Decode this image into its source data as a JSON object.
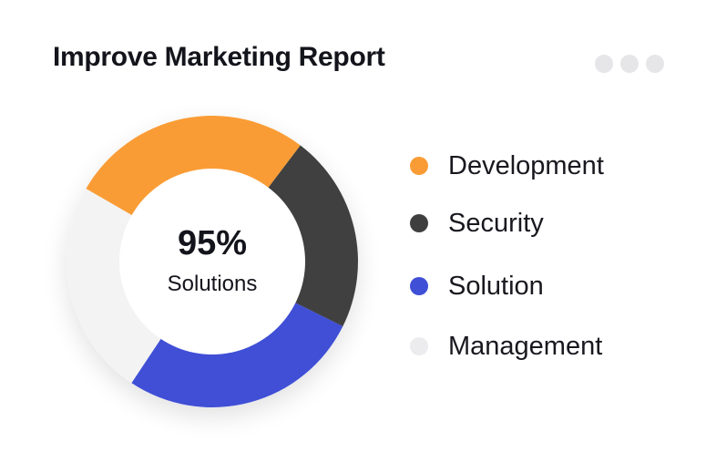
{
  "header": {
    "title": "Improve Marketing Report",
    "menu_icon": "more-horizontal-icon"
  },
  "chart_data": {
    "type": "pie",
    "variant": "donut",
    "title": "Improve Marketing Report",
    "center_value": "95%",
    "center_label": "Solutions",
    "legend_position": "right",
    "categories": [
      "Development",
      "Security",
      "Solution",
      "Management"
    ],
    "values": [
      27,
      22,
      27,
      24
    ],
    "colors": [
      "#FA9C35",
      "#3F3F3F",
      "#3F4FD6",
      "#F3F3F4"
    ]
  }
}
